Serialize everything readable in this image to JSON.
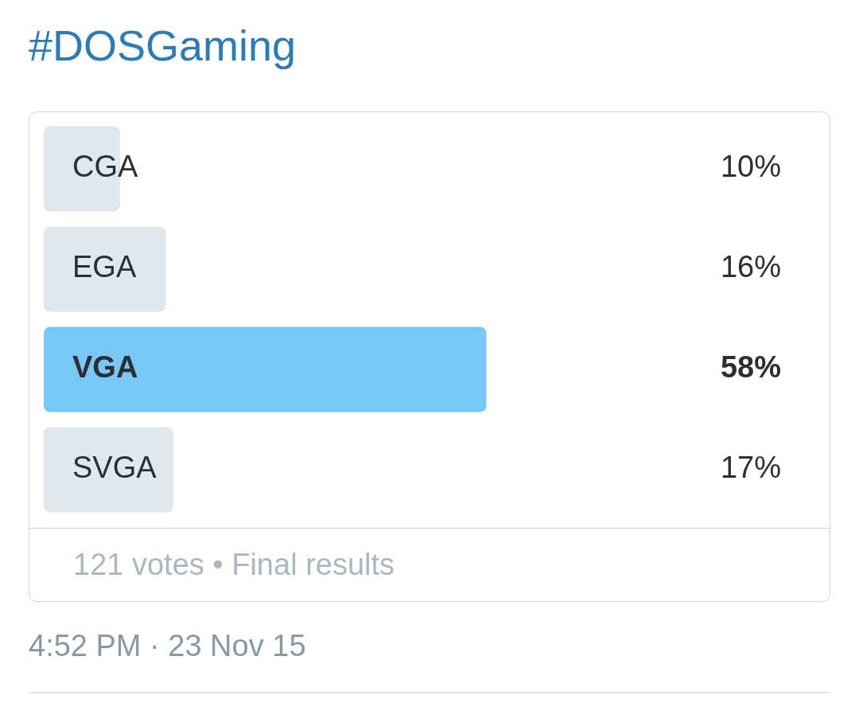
{
  "chart_data": {
    "type": "bar",
    "orientation": "horizontal",
    "title": "#DOSGaming",
    "categories": [
      "CGA",
      "EGA",
      "VGA",
      "SVGA"
    ],
    "values": [
      10,
      16,
      58,
      17
    ],
    "value_labels": [
      "10%",
      "16%",
      "58%",
      "17%"
    ],
    "colors": [
      "#e1e8ed",
      "#e1e8ed",
      "#77c7f7",
      "#e1e8ed"
    ],
    "tick_labels": false,
    "annotations": [
      "121 votes • Final results",
      "4:52 PM · 23 Nov 15"
    ]
  }
}
